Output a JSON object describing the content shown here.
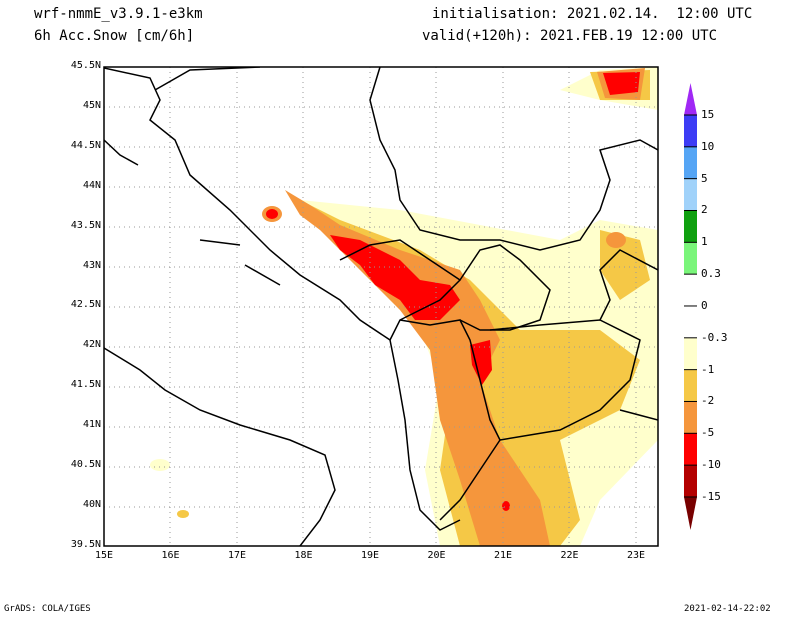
{
  "header": {
    "model": "wrf-nmmE_v3.9.1-e3km",
    "variable": "6h Acc.Snow [cm/6h]",
    "init": "initialisation: 2021.02.14.  12:00 UTC",
    "valid": "valid(+120h): 2021.FEB.19 12:00 UTC"
  },
  "axes": {
    "lon_labels": [
      "15E",
      "16E",
      "17E",
      "18E",
      "19E",
      "20E",
      "21E",
      "22E",
      "23E"
    ],
    "lat_labels": [
      "45.5N",
      "45N",
      "44.5N",
      "44N",
      "43.5N",
      "43N",
      "42.5N",
      "42N",
      "41.5N",
      "41N",
      "40.5N",
      "40N",
      "39.5N"
    ]
  },
  "colorbar": {
    "labels": [
      "15",
      "10",
      "5",
      "2",
      "1",
      "0.3",
      "0",
      "-0.3",
      "-1",
      "-2",
      "-5",
      "-10",
      "-15"
    ],
    "colors": [
      "#3c3cf5",
      "#55a5f5",
      "#a0d2fa",
      "#0fa00f",
      "#7af57a",
      "#ffffff",
      "#ffffff",
      "#ffffcc",
      "#f5c846",
      "#f5963c",
      "#ff0000",
      "#b40000"
    ],
    "top_arrow": "#a028f5",
    "bottom_arrow": "#780000"
  },
  "footer": {
    "left": "GrADS: COLA/IGES",
    "right": "2021-02-14-22:02"
  }
}
